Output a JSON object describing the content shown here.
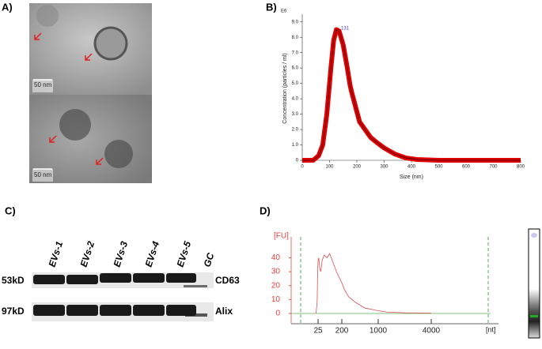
{
  "panels": [
    "A)",
    "B)",
    "C)",
    "D)"
  ],
  "micrographs": [
    {
      "scale": "50 nm"
    },
    {
      "scale": "50 nm"
    }
  ],
  "blot": {
    "lanes": [
      "EVs-1",
      "EVs-2",
      "EVs-3",
      "EVs-4",
      "EVs-5",
      "GC"
    ],
    "markers": [
      "53kD",
      "97kD"
    ],
    "proteins": [
      "CD63",
      "Alix"
    ]
  },
  "chart_data": [
    {
      "type": "line",
      "multiplier": "E6",
      "x_label": "Size (nm)",
      "y_label": "Concentration (particles / ml)",
      "annotation": "131",
      "color": "#e00000",
      "x": [
        0,
        40,
        60,
        75,
        90,
        105,
        115,
        125,
        135,
        150,
        165,
        175,
        180,
        195,
        210,
        230,
        250,
        270,
        300,
        340,
        380,
        420,
        500,
        600,
        700,
        800
      ],
      "values": [
        0,
        0,
        0.3,
        1,
        3,
        6,
        7.8,
        8.5,
        8.4,
        7.5,
        6,
        4.9,
        4.5,
        3.5,
        2.5,
        2,
        1.5,
        1.2,
        0.8,
        0.4,
        0.15,
        0.05,
        0,
        0,
        0,
        0
      ],
      "xlim": [
        0,
        800
      ],
      "xticks": [
        0,
        100,
        200,
        300,
        400,
        500,
        600,
        700,
        800
      ],
      "ylim": [
        0,
        9.5
      ],
      "yticks": [
        0,
        {
          "value": 1,
          "label": "1.0"
        },
        {
          "value": 2,
          "label": "2.0"
        },
        {
          "value": 3,
          "label": "3.0"
        },
        {
          "value": 4,
          "label": "4.0"
        },
        {
          "value": 5,
          "label": "5.0"
        },
        {
          "value": 6,
          "label": "6.0"
        },
        {
          "value": 7,
          "label": "7.0"
        },
        {
          "value": 8,
          "label": "8.0"
        },
        {
          "value": 9,
          "label": "9.0"
        }
      ]
    },
    {
      "type": "line",
      "y_label": "[FU]",
      "x_label": "[nt]",
      "color": "#e05050",
      "x": [
        10,
        18,
        22,
        25,
        30,
        38,
        45,
        55,
        70,
        90,
        110,
        130,
        160,
        200,
        260,
        350,
        500,
        700,
        1000,
        1500,
        2500,
        4000
      ],
      "values": [
        0,
        8,
        30,
        38,
        40,
        32,
        30,
        38,
        42,
        40,
        43,
        38,
        30,
        22,
        17,
        12,
        8,
        4,
        2,
        1,
        0.5,
        0.3
      ],
      "ylim": [
        0,
        55
      ],
      "yticks": [
        0,
        10,
        20,
        30,
        40
      ],
      "xticks": [
        25,
        200,
        1000,
        4000
      ]
    }
  ]
}
